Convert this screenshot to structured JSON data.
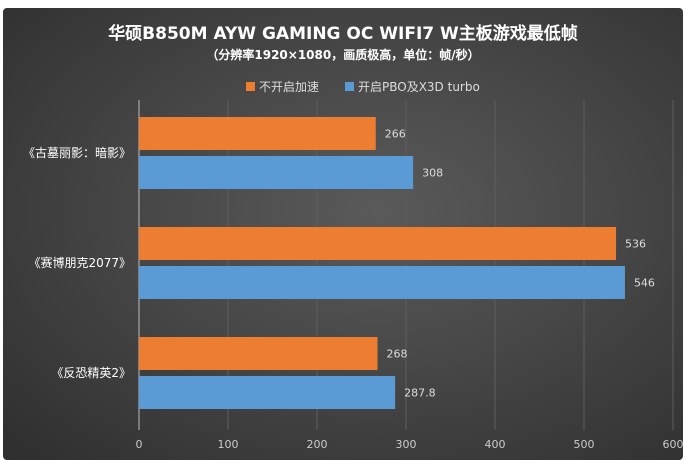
{
  "chart_data": {
    "type": "bar",
    "orientation": "horizontal",
    "title": "华硕B850M AYW GAMING OC WIFI7 W主板游戏最低帧",
    "subtitle": "（分辨率1920×1080，画质极高，单位：帧/秒）",
    "categories": [
      "《古墓丽影：暗影》",
      "《赛博朋克2077》",
      "《反恐精英2》"
    ],
    "series": [
      {
        "name": "不开启加速",
        "color": "#ed7d31",
        "values": [
          266,
          536,
          268
        ],
        "labels": [
          "266",
          "536",
          "268"
        ]
      },
      {
        "name": "开启PBO及X3D turbo",
        "color": "#5b9bd5",
        "values": [
          308,
          546,
          287.8
        ],
        "labels": [
          "308",
          "546",
          "287.8"
        ]
      }
    ],
    "xlim": [
      0,
      600
    ],
    "xticks": [
      "0",
      "100",
      "200",
      "300",
      "400",
      "500",
      "600"
    ],
    "grid": true,
    "legend_position": "top-center",
    "xlabel": "",
    "ylabel": ""
  }
}
